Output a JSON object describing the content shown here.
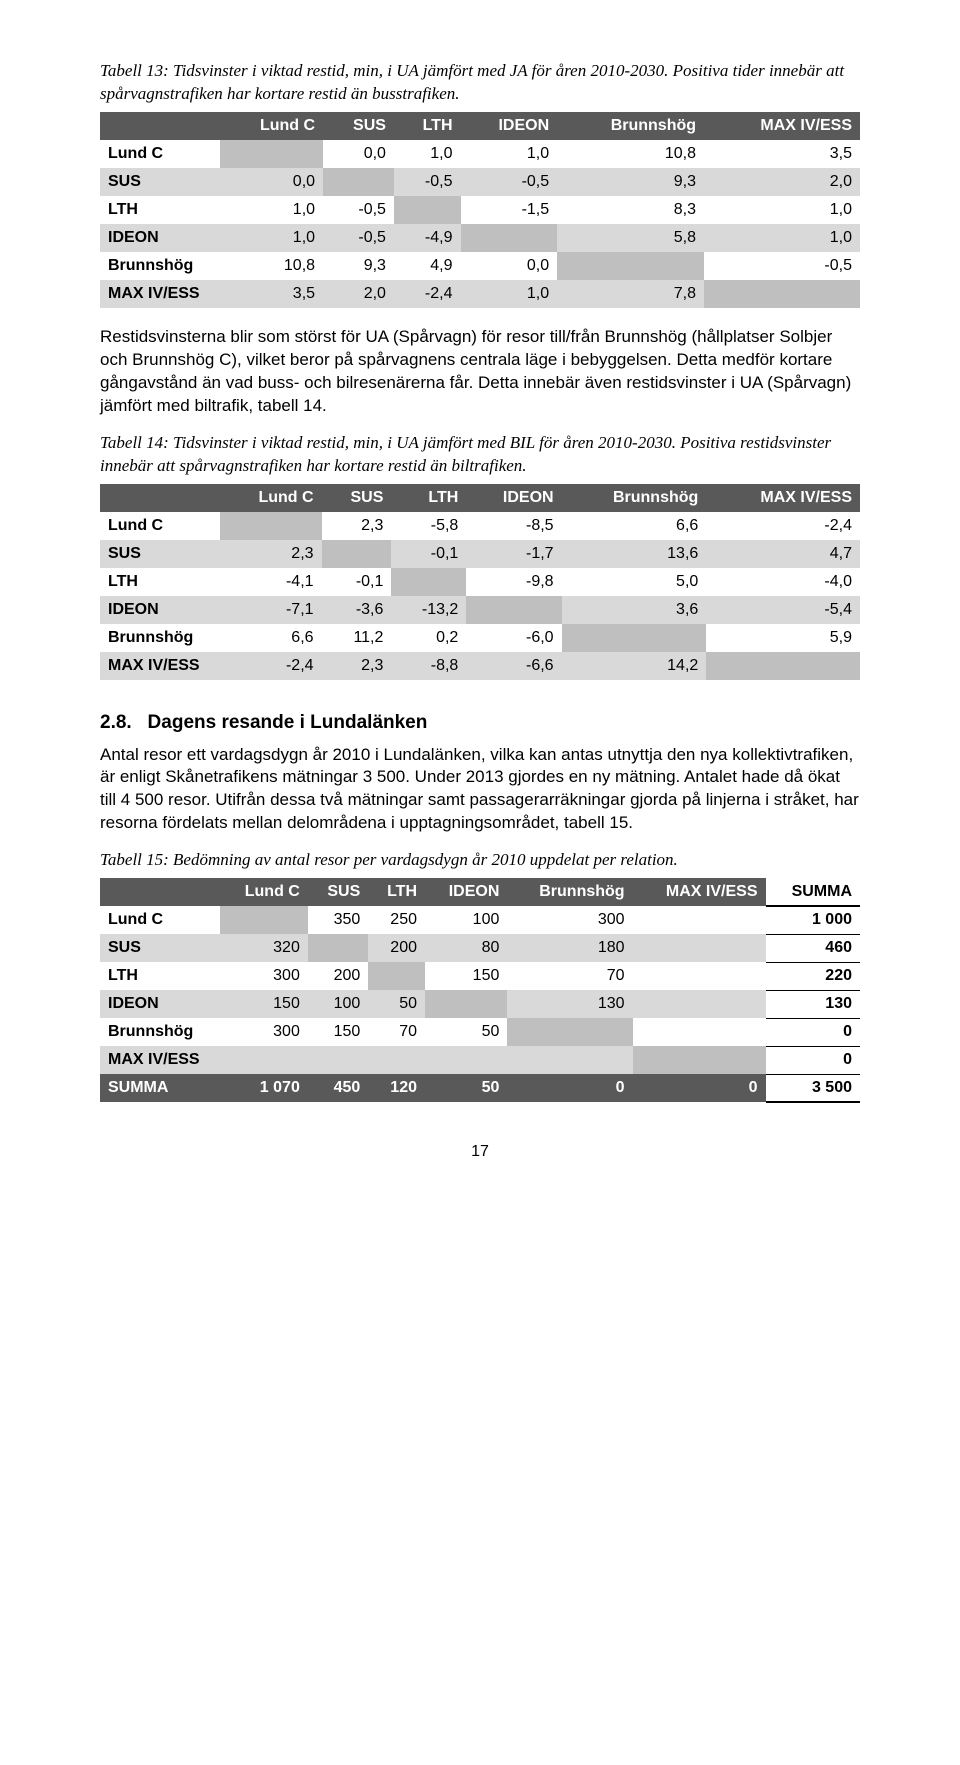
{
  "table13": {
    "caption": "Tabell 13: Tidsvinster i viktad restid, min, i UA jämfört med JA för åren 2010-2030. Positiva tider innebär att spårvagnstrafiken har kortare restid än busstrafiken.",
    "columns": [
      "Lund C",
      "SUS",
      "LTH",
      "IDEON",
      "Brunnshög",
      "MAX IV/ESS"
    ],
    "rows": [
      {
        "label": "Lund C",
        "cells": [
          "",
          "0,0",
          "1,0",
          "1,0",
          "10,8",
          "3,5"
        ]
      },
      {
        "label": "SUS",
        "cells": [
          "0,0",
          "",
          "-0,5",
          "-0,5",
          "9,3",
          "2,0"
        ]
      },
      {
        "label": "LTH",
        "cells": [
          "1,0",
          "-0,5",
          "",
          "-1,5",
          "8,3",
          "1,0"
        ]
      },
      {
        "label": "IDEON",
        "cells": [
          "1,0",
          "-0,5",
          "-4,9",
          "",
          "5,8",
          "1,0"
        ]
      },
      {
        "label": "Brunnshög",
        "cells": [
          "10,8",
          "9,3",
          "4,9",
          "0,0",
          "",
          "-0,5"
        ]
      },
      {
        "label": "MAX IV/ESS",
        "cells": [
          "3,5",
          "2,0",
          "-2,4",
          "1,0",
          "7,8",
          ""
        ]
      }
    ],
    "header_bg": "#595959",
    "header_fg": "#ffffff",
    "row_odd_bg": "#ffffff",
    "row_even_bg": "#d9d9d9",
    "diag_bg": "#bfbfbf",
    "fontsize": 16
  },
  "para1": "Restidsvinsterna blir som störst för UA (Spårvagn) för resor till/från Brunnshög (hållplatser Solbjer och Brunnshög C), vilket beror på spårvagnens centrala läge i bebyggelsen. Detta medför kortare gångavstånd än vad buss- och bilresenärerna får. Detta innebär även restidsvinster i UA (Spårvagn) jämfört med biltrafik, tabell 14.",
  "table14": {
    "caption": "Tabell 14: Tidsvinster i viktad restid, min, i UA jämfört med BIL för åren 2010-2030. Positiva restidsvinster innebär att spårvagnstrafiken har kortare restid än biltrafiken.",
    "columns": [
      "Lund C",
      "SUS",
      "LTH",
      "IDEON",
      "Brunnshög",
      "MAX IV/ESS"
    ],
    "rows": [
      {
        "label": "Lund C",
        "cells": [
          "",
          "2,3",
          "-5,8",
          "-8,5",
          "6,6",
          "-2,4"
        ]
      },
      {
        "label": "SUS",
        "cells": [
          "2,3",
          "",
          "-0,1",
          "-1,7",
          "13,6",
          "4,7"
        ]
      },
      {
        "label": "LTH",
        "cells": [
          "-4,1",
          "-0,1",
          "",
          "-9,8",
          "5,0",
          "-4,0"
        ]
      },
      {
        "label": "IDEON",
        "cells": [
          "-7,1",
          "-3,6",
          "-13,2",
          "",
          "3,6",
          "-5,4"
        ]
      },
      {
        "label": "Brunnshög",
        "cells": [
          "6,6",
          "11,2",
          "0,2",
          "-6,0",
          "",
          "5,9"
        ]
      },
      {
        "label": "MAX IV/ESS",
        "cells": [
          "-2,4",
          "2,3",
          "-8,8",
          "-6,6",
          "14,2",
          ""
        ]
      }
    ],
    "header_bg": "#595959",
    "header_fg": "#ffffff",
    "row_odd_bg": "#ffffff",
    "row_even_bg": "#d9d9d9",
    "diag_bg": "#bfbfbf",
    "fontsize": 16
  },
  "section28": {
    "number": "2.8.",
    "title": "Dagens resande i Lundalänken",
    "body": "Antal resor ett vardagsdygn år 2010 i Lundalänken, vilka kan antas utnyttja den nya kollektivtrafiken, är enligt Skånetrafikens mätningar 3 500. Under 2013 gjordes en ny mätning. Antalet hade då ökat till 4 500 resor. Utifrån dessa två mätningar samt passagerarräkningar gjorda på linjerna i stråket, har resorna fördelats mellan delområdena i upptagningsområdet, tabell 15."
  },
  "table15": {
    "caption": "Tabell 15: Bedömning av antal resor per vardagsdygn år 2010 uppdelat per relation.",
    "columns": [
      "Lund C",
      "SUS",
      "LTH",
      "IDEON",
      "Brunnshög",
      "MAX IV/ESS"
    ],
    "sum_label": "SUMMA",
    "rows": [
      {
        "label": "Lund C",
        "cells": [
          "",
          "350",
          "250",
          "100",
          "300",
          ""
        ],
        "sum": "1 000"
      },
      {
        "label": "SUS",
        "cells": [
          "320",
          "",
          "200",
          "80",
          "180",
          ""
        ],
        "sum": "460"
      },
      {
        "label": "LTH",
        "cells": [
          "300",
          "200",
          "",
          "150",
          "70",
          ""
        ],
        "sum": "220"
      },
      {
        "label": "IDEON",
        "cells": [
          "150",
          "100",
          "50",
          "",
          "130",
          ""
        ],
        "sum": "130"
      },
      {
        "label": "Brunnshög",
        "cells": [
          "300",
          "150",
          "70",
          "50",
          "",
          ""
        ],
        "sum": "0"
      },
      {
        "label": "MAX IV/ESS",
        "cells": [
          "",
          "",
          "",
          "",
          "",
          ""
        ],
        "sum": "0"
      }
    ],
    "footer": {
      "label": "SUMMA",
      "cells": [
        "1 070",
        "450",
        "120",
        "50",
        "0",
        "0"
      ],
      "sum": "3 500"
    },
    "header_bg": "#595959",
    "header_fg": "#ffffff",
    "row_odd_bg": "#ffffff",
    "row_even_bg": "#d9d9d9",
    "diag_bg": "#bfbfbf",
    "sum_col_bg": "#ffffff",
    "sum_col_border": "#000000",
    "fontsize": 16
  },
  "page_number": "17"
}
